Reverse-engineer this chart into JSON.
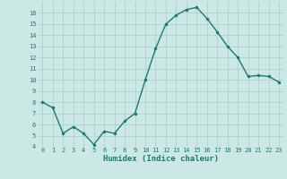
{
  "xlabel": "Humidex (Indice chaleur)",
  "ylabel": "",
  "x": [
    0,
    1,
    2,
    3,
    4,
    5,
    6,
    7,
    8,
    9,
    10,
    11,
    12,
    13,
    14,
    15,
    16,
    17,
    18,
    19,
    20,
    21,
    22,
    23
  ],
  "y": [
    8.0,
    7.5,
    5.2,
    5.8,
    5.2,
    4.2,
    5.4,
    5.2,
    6.3,
    7.0,
    10.0,
    12.8,
    15.0,
    15.8,
    16.3,
    16.5,
    15.5,
    14.3,
    13.0,
    12.0,
    10.3,
    10.4,
    10.3,
    9.8
  ],
  "line_color": "#1a7a6e",
  "marker_color": "#1a7a6e",
  "bg_color": "#cce8e4",
  "grid_color": "#aaccca",
  "axis_label_color": "#1a7a6e",
  "tick_label_color": "#1a7a6e",
  "ylim": [
    4,
    17
  ],
  "xlim": [
    -0.5,
    23.5
  ],
  "yticks": [
    4,
    5,
    6,
    7,
    8,
    9,
    10,
    11,
    12,
    13,
    14,
    15,
    16
  ],
  "xticks": [
    0,
    1,
    2,
    3,
    4,
    5,
    6,
    7,
    8,
    9,
    10,
    11,
    12,
    13,
    14,
    15,
    16,
    17,
    18,
    19,
    20,
    21,
    22,
    23
  ],
  "xtick_labels": [
    "0",
    "1",
    "2",
    "3",
    "4",
    "5",
    "6",
    "7",
    "8",
    "9",
    "10",
    "11",
    "12",
    "13",
    "14",
    "15",
    "16",
    "17",
    "18",
    "19",
    "20",
    "21",
    "22",
    "23"
  ],
  "linewidth": 1.0,
  "markersize": 2.2,
  "tick_fontsize": 5.0,
  "xlabel_fontsize": 6.5,
  "xlabel_fontweight": "bold"
}
